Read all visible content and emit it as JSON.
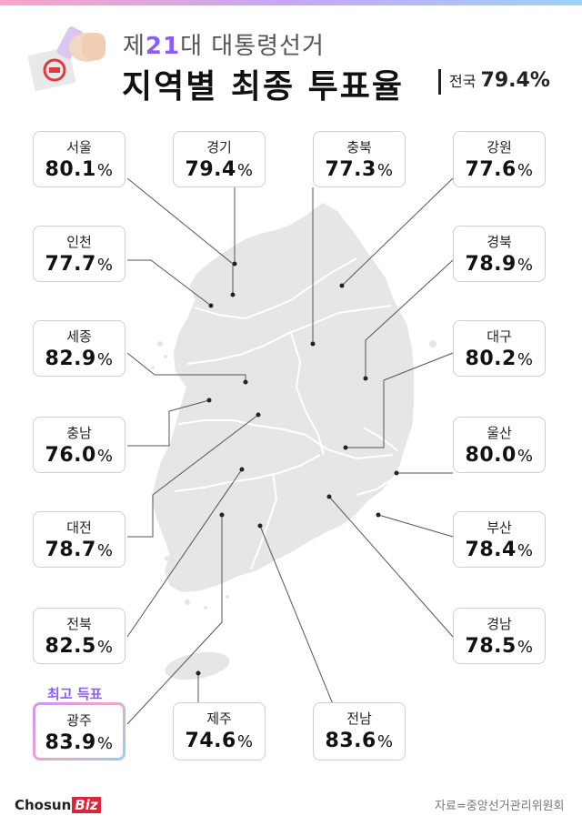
{
  "header": {
    "title_sub_prefix": "제",
    "title_sub_num": "21",
    "title_sub_suffix": "대 대통령선거",
    "title_main": "지역별 최종 투표율",
    "national_label": "전국",
    "national_value": "79.4%"
  },
  "highlight_label": "최고 득표",
  "source": "자료=중앙선거관리위원회",
  "logo": {
    "main": "Chosun",
    "accent": "Biz"
  },
  "colors": {
    "map_fill": "#e6e6e6",
    "map_stroke": "#ffffff",
    "highlight": "#8b5cf6",
    "box_border": "#cfcfcf"
  },
  "chart_data": {
    "type": "table",
    "unit": "%",
    "regions": [
      {
        "name": "서울",
        "value": 80.1
      },
      {
        "name": "경기",
        "value": 79.4
      },
      {
        "name": "충북",
        "value": 77.3
      },
      {
        "name": "강원",
        "value": 77.6
      },
      {
        "name": "인천",
        "value": 77.7
      },
      {
        "name": "경북",
        "value": 78.9
      },
      {
        "name": "세종",
        "value": 82.9
      },
      {
        "name": "대구",
        "value": 80.2
      },
      {
        "name": "충남",
        "value": 76.0
      },
      {
        "name": "울산",
        "value": 80.0
      },
      {
        "name": "대전",
        "value": 78.7
      },
      {
        "name": "부산",
        "value": 78.4
      },
      {
        "name": "전북",
        "value": 82.5
      },
      {
        "name": "경남",
        "value": 78.5
      },
      {
        "name": "광주",
        "value": 83.9
      },
      {
        "name": "제주",
        "value": 74.6
      },
      {
        "name": "전남",
        "value": 83.6
      }
    ]
  }
}
